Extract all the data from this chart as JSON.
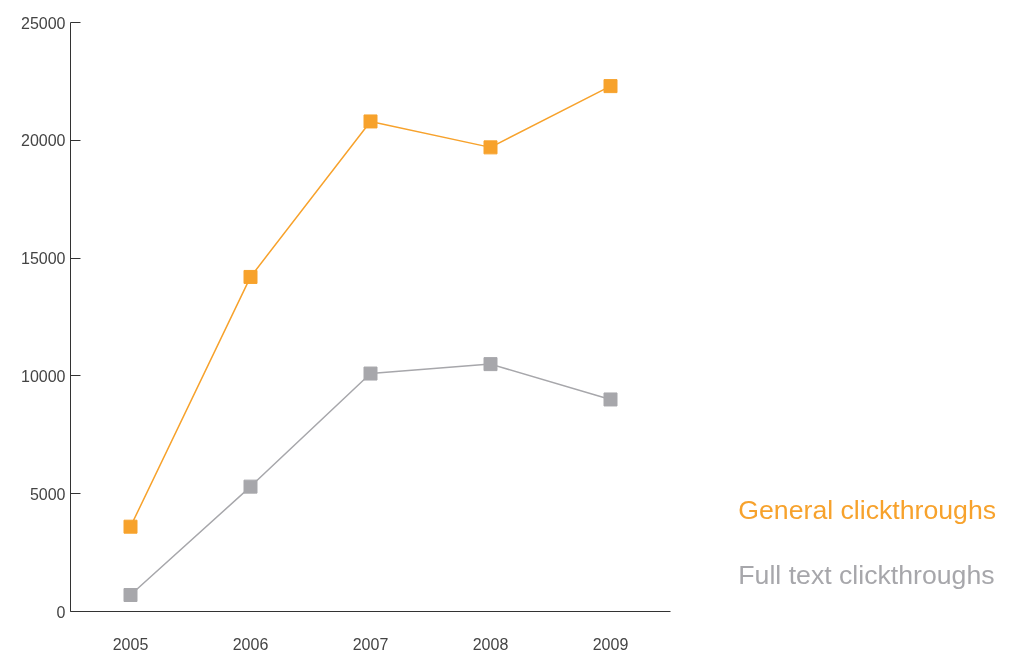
{
  "chart_data": {
    "type": "line",
    "categories": [
      "2005",
      "2006",
      "2007",
      "2008",
      "2009"
    ],
    "series": [
      {
        "name": "General clickthroughs",
        "color": "#f7a22c",
        "values": [
          3600,
          14200,
          20800,
          19700,
          22300
        ]
      },
      {
        "name": "Full text clickthroughs",
        "color": "#a7a7ab",
        "values": [
          700,
          5300,
          10100,
          10500,
          9000
        ]
      }
    ],
    "ylim": [
      0,
      25000
    ],
    "yticks": [
      0,
      5000,
      10000,
      15000,
      20000,
      25000
    ],
    "grid": false,
    "marker": "square",
    "line_style": "solid"
  }
}
